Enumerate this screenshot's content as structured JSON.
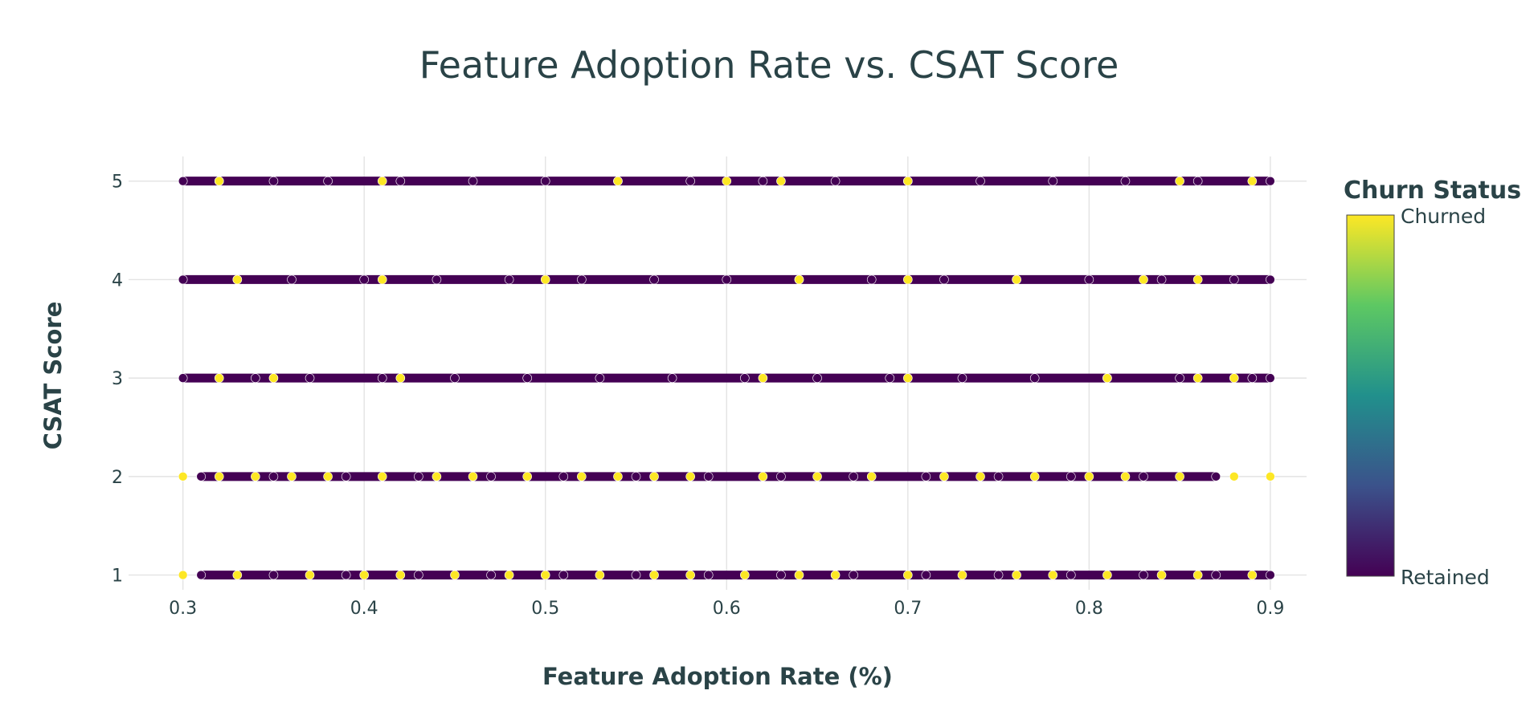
{
  "chart_data": {
    "type": "scatter",
    "title": "Feature Adoption Rate vs. CSAT Score",
    "xlabel": "Feature Adoption Rate (%)",
    "ylabel": "CSAT Score",
    "xlim": [
      0.27,
      0.92
    ],
    "ylim": [
      0.85,
      5.25
    ],
    "x_ticks": [
      "0.3",
      "0.4",
      "0.5",
      "0.6",
      "0.7",
      "0.8",
      "0.9"
    ],
    "y_ticks": [
      "1",
      "2",
      "3",
      "4",
      "5"
    ],
    "grid": true,
    "colorbar": {
      "title": "Churn Status",
      "top_label": "Churned",
      "bottom_label": "Retained",
      "colorscale": "viridis",
      "colors": [
        "#440154",
        "#3b528b",
        "#21908c",
        "#5dc863",
        "#fde725"
      ]
    },
    "series": [
      {
        "category": "Retained",
        "value": 0,
        "color": "#440154",
        "points": [
          [
            0.3,
            5
          ],
          [
            0.32,
            5
          ],
          [
            0.35,
            5
          ],
          [
            0.38,
            5
          ],
          [
            0.42,
            5
          ],
          [
            0.46,
            5
          ],
          [
            0.5,
            5
          ],
          [
            0.54,
            5
          ],
          [
            0.58,
            5
          ],
          [
            0.62,
            5
          ],
          [
            0.66,
            5
          ],
          [
            0.7,
            5
          ],
          [
            0.74,
            5
          ],
          [
            0.78,
            5
          ],
          [
            0.82,
            5
          ],
          [
            0.86,
            5
          ],
          [
            0.9,
            5
          ],
          [
            0.3,
            4
          ],
          [
            0.33,
            4
          ],
          [
            0.36,
            4
          ],
          [
            0.4,
            4
          ],
          [
            0.44,
            4
          ],
          [
            0.48,
            4
          ],
          [
            0.52,
            4
          ],
          [
            0.56,
            4
          ],
          [
            0.6,
            4
          ],
          [
            0.64,
            4
          ],
          [
            0.68,
            4
          ],
          [
            0.72,
            4
          ],
          [
            0.76,
            4
          ],
          [
            0.8,
            4
          ],
          [
            0.84,
            4
          ],
          [
            0.88,
            4
          ],
          [
            0.9,
            4
          ],
          [
            0.3,
            3
          ],
          [
            0.34,
            3
          ],
          [
            0.37,
            3
          ],
          [
            0.41,
            3
          ],
          [
            0.45,
            3
          ],
          [
            0.49,
            3
          ],
          [
            0.53,
            3
          ],
          [
            0.57,
            3
          ],
          [
            0.61,
            3
          ],
          [
            0.65,
            3
          ],
          [
            0.69,
            3
          ],
          [
            0.73,
            3
          ],
          [
            0.77,
            3
          ],
          [
            0.81,
            3
          ],
          [
            0.85,
            3
          ],
          [
            0.89,
            3
          ],
          [
            0.9,
            3
          ],
          [
            0.31,
            2
          ],
          [
            0.35,
            2
          ],
          [
            0.39,
            2
          ],
          [
            0.43,
            2
          ],
          [
            0.47,
            2
          ],
          [
            0.51,
            2
          ],
          [
            0.55,
            2
          ],
          [
            0.59,
            2
          ],
          [
            0.63,
            2
          ],
          [
            0.67,
            2
          ],
          [
            0.71,
            2
          ],
          [
            0.75,
            2
          ],
          [
            0.79,
            2
          ],
          [
            0.83,
            2
          ],
          [
            0.87,
            2
          ],
          [
            0.31,
            1
          ],
          [
            0.35,
            1
          ],
          [
            0.39,
            1
          ],
          [
            0.43,
            1
          ],
          [
            0.47,
            1
          ],
          [
            0.51,
            1
          ],
          [
            0.55,
            1
          ],
          [
            0.59,
            1
          ],
          [
            0.63,
            1
          ],
          [
            0.67,
            1
          ],
          [
            0.71,
            1
          ],
          [
            0.75,
            1
          ],
          [
            0.79,
            1
          ],
          [
            0.83,
            1
          ],
          [
            0.87,
            1
          ],
          [
            0.9,
            1
          ]
        ]
      },
      {
        "category": "Churned",
        "value": 1,
        "color": "#fde725",
        "points": [
          [
            0.32,
            5
          ],
          [
            0.41,
            5
          ],
          [
            0.54,
            5
          ],
          [
            0.6,
            5
          ],
          [
            0.63,
            5
          ],
          [
            0.7,
            5
          ],
          [
            0.85,
            5
          ],
          [
            0.89,
            5
          ],
          [
            0.33,
            4
          ],
          [
            0.41,
            4
          ],
          [
            0.5,
            4
          ],
          [
            0.64,
            4
          ],
          [
            0.7,
            4
          ],
          [
            0.76,
            4
          ],
          [
            0.83,
            4
          ],
          [
            0.86,
            4
          ],
          [
            0.32,
            3
          ],
          [
            0.35,
            3
          ],
          [
            0.42,
            3
          ],
          [
            0.62,
            3
          ],
          [
            0.7,
            3
          ],
          [
            0.81,
            3
          ],
          [
            0.86,
            3
          ],
          [
            0.88,
            3
          ],
          [
            0.3,
            2
          ],
          [
            0.32,
            2
          ],
          [
            0.34,
            2
          ],
          [
            0.36,
            2
          ],
          [
            0.38,
            2
          ],
          [
            0.41,
            2
          ],
          [
            0.44,
            2
          ],
          [
            0.46,
            2
          ],
          [
            0.49,
            2
          ],
          [
            0.52,
            2
          ],
          [
            0.54,
            2
          ],
          [
            0.56,
            2
          ],
          [
            0.58,
            2
          ],
          [
            0.62,
            2
          ],
          [
            0.65,
            2
          ],
          [
            0.68,
            2
          ],
          [
            0.72,
            2
          ],
          [
            0.74,
            2
          ],
          [
            0.77,
            2
          ],
          [
            0.8,
            2
          ],
          [
            0.82,
            2
          ],
          [
            0.85,
            2
          ],
          [
            0.88,
            2
          ],
          [
            0.9,
            2
          ],
          [
            0.3,
            1
          ],
          [
            0.33,
            1
          ],
          [
            0.37,
            1
          ],
          [
            0.4,
            1
          ],
          [
            0.42,
            1
          ],
          [
            0.45,
            1
          ],
          [
            0.48,
            1
          ],
          [
            0.5,
            1
          ],
          [
            0.53,
            1
          ],
          [
            0.56,
            1
          ],
          [
            0.58,
            1
          ],
          [
            0.61,
            1
          ],
          [
            0.64,
            1
          ],
          [
            0.66,
            1
          ],
          [
            0.7,
            1
          ],
          [
            0.73,
            1
          ],
          [
            0.76,
            1
          ],
          [
            0.78,
            1
          ],
          [
            0.81,
            1
          ],
          [
            0.84,
            1
          ],
          [
            0.86,
            1
          ],
          [
            0.89,
            1
          ]
        ]
      }
    ]
  }
}
